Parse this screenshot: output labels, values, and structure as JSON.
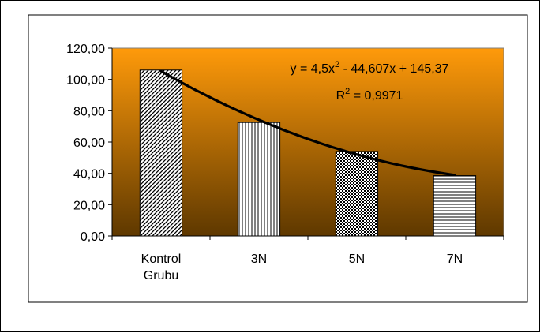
{
  "chart_data": {
    "type": "bar",
    "title": "",
    "xlabel": "",
    "ylabel": "",
    "categories": [
      [
        "Kontrol",
        "Grubu"
      ],
      [
        "3N"
      ],
      [
        "5N"
      ],
      [
        "7N"
      ]
    ],
    "values": [
      106,
      72.5,
      54,
      38.5
    ],
    "ylim": [
      0,
      120
    ],
    "yticks": [
      0,
      20,
      40,
      60,
      80,
      100,
      120
    ],
    "ytick_labels": [
      "0,00",
      "20,00",
      "40,00",
      "60,00",
      "80,00",
      "100,00",
      "120,00"
    ],
    "patterns": [
      "diagonal-hatch",
      "vertical-lines",
      "checker",
      "horizontal-lines"
    ],
    "trendline": {
      "type": "polynomial",
      "coefficients": [
        4.5,
        -44.607,
        145.37
      ],
      "equation": {
        "prefix": "y = 4,5x",
        "exponent": "2",
        "suffix": " - 44,607x + 145,37"
      },
      "r2": {
        "prefix": "R",
        "exponent": "2",
        "suffix": " = 0,9971"
      }
    },
    "background_gradient": [
      "#ff9a0a",
      "#5e3800"
    ],
    "grid": false,
    "legend": "none"
  }
}
